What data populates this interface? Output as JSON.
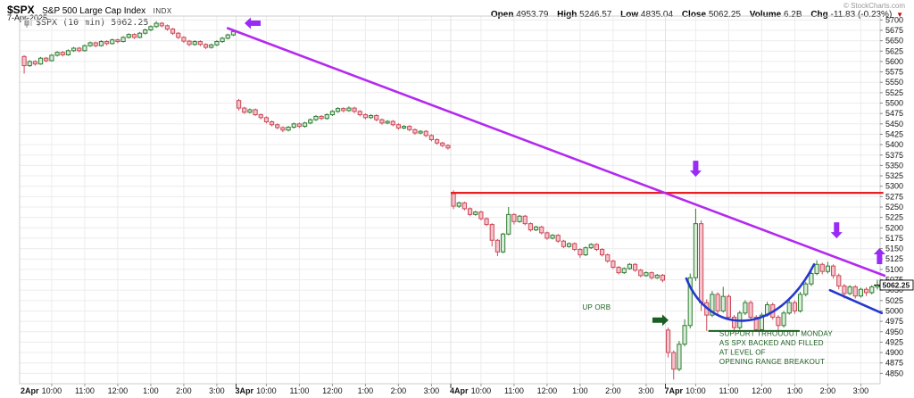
{
  "header": {
    "symbol": "$SPX",
    "symbol_name": "S&P 500 Large Cap Index",
    "exchange": "INDX",
    "date": "7-Apr-2025",
    "copyright": "© StockCharts.com",
    "quote": {
      "open": {
        "label": "Open",
        "value": "4953.79"
      },
      "high": {
        "label": "High",
        "value": "5246.57"
      },
      "low": {
        "label": "Low",
        "value": "4835.04"
      },
      "close": {
        "label": "Close",
        "value": "5062.25"
      },
      "volume": {
        "label": "Volume",
        "value": "6.2B"
      },
      "chg": {
        "label": "Chg",
        "value": "-11.83 (-0.23%)",
        "arrow": "▼"
      }
    }
  },
  "legend": {
    "text": "$SPX (10 min) 5062.25"
  },
  "last_price_label": "5062.25",
  "chart_data": {
    "type": "candlestick",
    "timeframe": "10 min",
    "title": "$SPX S&P 500 Large Cap Index intraday, 2-7 Apr 2025",
    "ylim": [
      4825,
      5705
    ],
    "y_ticks": {
      "min": 4850,
      "max": 5700,
      "step": 25
    },
    "x_axis_hours": [
      "10:00",
      "11:00",
      "12:00",
      "1:00",
      "2:00",
      "3:00"
    ],
    "grid": true,
    "colors": {
      "up_stroke": "#2e7d32",
      "up_fill": "#d9ecd9",
      "down_stroke": "#cc4a58",
      "down_fill": "#f5c3cc",
      "trendline": "#b429f0",
      "level_line": "#e62020",
      "support": "#1b5e20",
      "cup": "#2438cc",
      "purple_arrow": "#9a2bf5",
      "grid": "#ececec",
      "border": "#cccccc",
      "axis_text": "#111111"
    },
    "days": [
      {
        "label": "2Apr",
        "bars": [
          [
            5612,
            5615,
            5571,
            5590
          ],
          [
            5590,
            5603,
            5587,
            5600
          ],
          [
            5600,
            5603,
            5590,
            5594
          ],
          [
            5594,
            5611,
            5592,
            5608
          ],
          [
            5608,
            5611,
            5598,
            5602
          ],
          [
            5602,
            5618,
            5600,
            5615
          ],
          [
            5615,
            5625,
            5612,
            5622
          ],
          [
            5622,
            5625,
            5612,
            5616
          ],
          [
            5616,
            5629,
            5614,
            5626
          ],
          [
            5626,
            5635,
            5623,
            5632
          ],
          [
            5632,
            5635,
            5622,
            5626
          ],
          [
            5626,
            5641,
            5624,
            5638
          ],
          [
            5638,
            5648,
            5635,
            5645
          ],
          [
            5645,
            5648,
            5634,
            5638
          ],
          [
            5638,
            5651,
            5636,
            5648
          ],
          [
            5648,
            5651,
            5639,
            5643
          ],
          [
            5643,
            5655,
            5641,
            5652
          ],
          [
            5652,
            5655,
            5644,
            5648
          ],
          [
            5648,
            5661,
            5646,
            5658
          ],
          [
            5658,
            5668,
            5655,
            5665
          ],
          [
            5665,
            5668,
            5654,
            5658
          ],
          [
            5658,
            5671,
            5656,
            5668
          ],
          [
            5668,
            5679,
            5665,
            5676
          ],
          [
            5676,
            5687,
            5673,
            5684
          ],
          [
            5684,
            5697,
            5681,
            5692
          ],
          [
            5692,
            5695,
            5682,
            5686
          ],
          [
            5686,
            5689,
            5674,
            5678
          ],
          [
            5678,
            5681,
            5664,
            5668
          ],
          [
            5668,
            5671,
            5654,
            5658
          ],
          [
            5658,
            5661,
            5645,
            5649
          ],
          [
            5649,
            5652,
            5637,
            5641
          ],
          [
            5641,
            5651,
            5638,
            5648
          ],
          [
            5648,
            5651,
            5637,
            5641
          ],
          [
            5641,
            5644,
            5630,
            5634
          ],
          [
            5634,
            5643,
            5631,
            5640
          ],
          [
            5640,
            5651,
            5637,
            5648
          ],
          [
            5648,
            5659,
            5645,
            5656
          ],
          [
            5656,
            5667,
            5653,
            5664
          ],
          [
            5664,
            5675,
            5661,
            5672
          ]
        ]
      },
      {
        "label": "3Apr",
        "bars": [
          [
            5506,
            5510,
            5482,
            5488
          ],
          [
            5488,
            5491,
            5474,
            5478
          ],
          [
            5478,
            5487,
            5475,
            5484
          ],
          [
            5484,
            5487,
            5469,
            5472
          ],
          [
            5472,
            5475,
            5461,
            5465
          ],
          [
            5465,
            5468,
            5451,
            5455
          ],
          [
            5455,
            5458,
            5444,
            5448
          ],
          [
            5448,
            5451,
            5437,
            5441
          ],
          [
            5441,
            5444,
            5430,
            5435
          ],
          [
            5435,
            5445,
            5432,
            5442
          ],
          [
            5442,
            5453,
            5439,
            5450
          ],
          [
            5450,
            5453,
            5440,
            5444
          ],
          [
            5444,
            5455,
            5441,
            5452
          ],
          [
            5452,
            5463,
            5449,
            5460
          ],
          [
            5460,
            5471,
            5457,
            5468
          ],
          [
            5468,
            5471,
            5459,
            5463
          ],
          [
            5463,
            5475,
            5460,
            5472
          ],
          [
            5472,
            5483,
            5469,
            5480
          ],
          [
            5480,
            5490,
            5477,
            5487
          ],
          [
            5487,
            5490,
            5478,
            5482
          ],
          [
            5482,
            5492,
            5479,
            5488
          ],
          [
            5488,
            5491,
            5476,
            5480
          ],
          [
            5480,
            5483,
            5468,
            5472
          ],
          [
            5472,
            5475,
            5461,
            5465
          ],
          [
            5465,
            5473,
            5462,
            5470
          ],
          [
            5470,
            5473,
            5456,
            5460
          ],
          [
            5460,
            5463,
            5448,
            5452
          ],
          [
            5452,
            5459,
            5449,
            5456
          ],
          [
            5456,
            5459,
            5444,
            5448
          ],
          [
            5448,
            5451,
            5436,
            5440
          ],
          [
            5440,
            5447,
            5437,
            5444
          ],
          [
            5444,
            5447,
            5432,
            5436
          ],
          [
            5436,
            5439,
            5424,
            5428
          ],
          [
            5428,
            5435,
            5425,
            5432
          ],
          [
            5432,
            5435,
            5418,
            5422
          ],
          [
            5422,
            5425,
            5408,
            5412
          ],
          [
            5412,
            5415,
            5400,
            5404
          ],
          [
            5404,
            5407,
            5394,
            5398
          ],
          [
            5398,
            5401,
            5388,
            5392
          ]
        ]
      },
      {
        "label": "4Apr",
        "bars": [
          [
            5282,
            5290,
            5245,
            5252
          ],
          [
            5252,
            5263,
            5248,
            5260
          ],
          [
            5260,
            5263,
            5242,
            5246
          ],
          [
            5246,
            5249,
            5228,
            5232
          ],
          [
            5232,
            5241,
            5229,
            5238
          ],
          [
            5238,
            5241,
            5218,
            5222
          ],
          [
            5222,
            5225,
            5204,
            5208
          ],
          [
            5208,
            5211,
            5155,
            5170
          ],
          [
            5170,
            5173,
            5132,
            5142
          ],
          [
            5142,
            5188,
            5139,
            5185
          ],
          [
            5185,
            5250,
            5182,
            5232
          ],
          [
            5232,
            5235,
            5208,
            5215
          ],
          [
            5215,
            5231,
            5212,
            5228
          ],
          [
            5228,
            5231,
            5206,
            5210
          ],
          [
            5210,
            5213,
            5191,
            5195
          ],
          [
            5195,
            5205,
            5192,
            5202
          ],
          [
            5202,
            5205,
            5184,
            5188
          ],
          [
            5188,
            5191,
            5171,
            5175
          ],
          [
            5175,
            5185,
            5172,
            5182
          ],
          [
            5182,
            5185,
            5164,
            5168
          ],
          [
            5168,
            5171,
            5151,
            5155
          ],
          [
            5155,
            5165,
            5152,
            5162
          ],
          [
            5162,
            5165,
            5144,
            5148
          ],
          [
            5148,
            5151,
            5128,
            5135
          ],
          [
            5135,
            5155,
            5132,
            5152
          ],
          [
            5152,
            5163,
            5149,
            5160
          ],
          [
            5160,
            5163,
            5144,
            5148
          ],
          [
            5148,
            5151,
            5131,
            5135
          ],
          [
            5135,
            5138,
            5116,
            5120
          ],
          [
            5120,
            5123,
            5101,
            5105
          ],
          [
            5105,
            5108,
            5088,
            5092
          ],
          [
            5092,
            5105,
            5089,
            5102
          ],
          [
            5102,
            5115,
            5099,
            5112
          ],
          [
            5112,
            5115,
            5094,
            5098
          ],
          [
            5098,
            5101,
            5081,
            5085
          ],
          [
            5085,
            5095,
            5082,
            5092
          ],
          [
            5092,
            5095,
            5076,
            5080
          ],
          [
            5080,
            5089,
            5077,
            5086
          ],
          [
            5086,
            5089,
            5069,
            5074
          ]
        ]
      },
      {
        "label": "7Apr",
        "bars": [
          [
            4954,
            4960,
            4888,
            4900
          ],
          [
            4900,
            4905,
            4835,
            4860
          ],
          [
            4860,
            4928,
            4855,
            4920
          ],
          [
            4920,
            4980,
            4915,
            4965
          ],
          [
            4965,
            5090,
            4958,
            5080
          ],
          [
            5080,
            5246,
            5072,
            5210
          ],
          [
            5210,
            5218,
            5000,
            5020
          ],
          [
            5020,
            5028,
            4952,
            4990
          ],
          [
            4990,
            5048,
            4985,
            5040
          ],
          [
            5040,
            5045,
            4992,
            5000
          ],
          [
            5000,
            5058,
            4996,
            5035
          ],
          [
            5035,
            5040,
            4978,
            4985
          ],
          [
            4985,
            4990,
            4950,
            4960
          ],
          [
            4960,
            5000,
            4955,
            4995
          ],
          [
            4995,
            5026,
            4990,
            5020
          ],
          [
            5020,
            5025,
            4978,
            4985
          ],
          [
            4985,
            4990,
            4950,
            4955
          ],
          [
            4955,
            4996,
            4951,
            4990
          ],
          [
            4990,
            5022,
            4986,
            5015
          ],
          [
            5015,
            5020,
            4979,
            4985
          ],
          [
            4985,
            4990,
            4951,
            4965
          ],
          [
            4965,
            5000,
            4960,
            4995
          ],
          [
            4995,
            5026,
            4991,
            5020
          ],
          [
            5020,
            5025,
            4993,
            5000
          ],
          [
            5000,
            5046,
            4996,
            5040
          ],
          [
            5040,
            5070,
            5035,
            5065
          ],
          [
            5065,
            5098,
            5060,
            5090
          ],
          [
            5090,
            5122,
            5086,
            5112
          ],
          [
            5112,
            5116,
            5088,
            5095
          ],
          [
            5095,
            5118,
            5090,
            5108
          ],
          [
            5108,
            5112,
            5078,
            5085
          ],
          [
            5085,
            5090,
            5052,
            5060
          ],
          [
            5060,
            5065,
            5030,
            5042
          ],
          [
            5042,
            5062,
            5038,
            5058
          ],
          [
            5058,
            5062,
            5030,
            5036
          ],
          [
            5036,
            5056,
            5032,
            5052
          ],
          [
            5052,
            5057,
            5036,
            5044
          ],
          [
            5044,
            5062,
            5040,
            5058
          ],
          [
            5058,
            5075,
            5052,
            5062.25
          ]
        ]
      }
    ],
    "annotations": {
      "trendline": {
        "x1_bar": 37,
        "y1_price": 5680,
        "x2_bar": 156.3,
        "y2_price": 5085
      },
      "level_line": {
        "price": 5284,
        "from_bar": 78,
        "to_bar": 156.6
      },
      "support_line": {
        "price": 4952,
        "from_bar": 124.8,
        "to_bar": 141.4
      },
      "cup_curve": {
        "left": {
          "bar": 120.3,
          "price": 5078
        },
        "bottom_price": 4948,
        "right": {
          "bar": 143.5,
          "price": 5112
        }
      },
      "handle_line": {
        "x1_bar": 146.4,
        "y1_price": 5050,
        "x2_bar": 155.8,
        "y2_price": 4995
      },
      "arrows": [
        {
          "name": "purple-left-arrow",
          "dir": "left",
          "color": "purple",
          "bar": 41.5,
          "price": 5692
        },
        {
          "name": "purple-down-arrow-1",
          "dir": "down",
          "color": "purple",
          "bar": 122,
          "price": 5342
        },
        {
          "name": "purple-down-arrow-2",
          "dir": "down",
          "color": "purple",
          "bar": 147.6,
          "price": 5194
        },
        {
          "name": "purple-up-arrow",
          "dir": "up",
          "color": "purple",
          "bar": 155.4,
          "price": 5132
        },
        {
          "name": "green-right-arrow",
          "dir": "right",
          "color": "green",
          "bar": 115.6,
          "price": 4978
        }
      ],
      "labels": [
        {
          "name": "up-orb-label",
          "lines": [
            "UP ORB"
          ],
          "bar": 104,
          "price": 5003,
          "align": "middle"
        },
        {
          "name": "support-note",
          "lines": [
            "SUPPORT TRHOUOUT MONDAY",
            "AS SPX BACKED AND FILLED",
            "AT LEVEL OF",
            "OPENING RANGE BREAKOUT"
          ],
          "bar": 126.3,
          "price": 4940,
          "align": "start"
        }
      ]
    }
  }
}
